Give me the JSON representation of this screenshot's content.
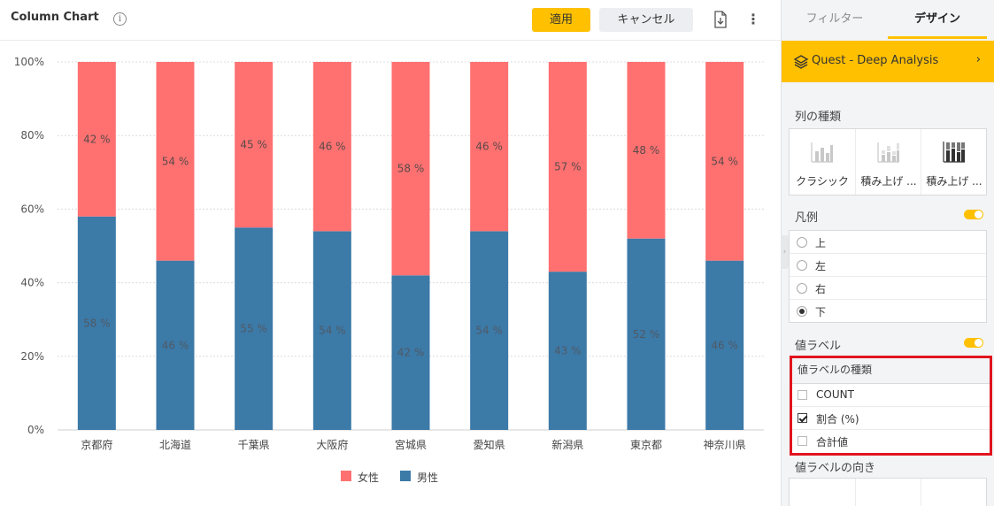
{
  "toolbar": {
    "chart_title": "Column Chart",
    "info_icon": "info-icon",
    "apply_label": "適用",
    "cancel_label": "キャンセル",
    "export_icon": "file-export-icon",
    "more_icon": "more-vertical-icon"
  },
  "colors": {
    "female": "#ff7171",
    "male": "#3c7aa8",
    "accent": "#ffc000",
    "highlight_border": "#e0141e"
  },
  "chart_data": {
    "type": "bar",
    "stacked": "100%",
    "categories": [
      "京都府",
      "北海道",
      "千葉県",
      "大阪府",
      "宮城県",
      "愛知県",
      "新潟県",
      "東京都",
      "神奈川県"
    ],
    "series": [
      {
        "name": "男性",
        "values": [
          58,
          46,
          55,
          54,
          42,
          54,
          43,
          52,
          46
        ]
      },
      {
        "name": "女性",
        "values": [
          42,
          54,
          45,
          46,
          58,
          46,
          57,
          48,
          54
        ]
      }
    ],
    "data_label_suffix": " %",
    "y_ticks": [
      "0%",
      "20%",
      "40%",
      "60%",
      "80%",
      "100%"
    ],
    "ylim": [
      0,
      100
    ],
    "grid": "horizontal-dotted",
    "legend_position": "bottom"
  },
  "side_panel": {
    "tabs": [
      {
        "label": "フィルター"
      },
      {
        "label": "デザイン"
      }
    ],
    "active_tab": "デザイン",
    "dataset": {
      "label": "Quest - Deep Analysis",
      "icon": "layers-icon",
      "chevron_icon": "chevron-right-icon"
    },
    "column_type": {
      "label": "列の種類",
      "options": [
        {
          "label": "クラシック"
        },
        {
          "label": "積み上げ ..."
        },
        {
          "label": "積み上げ ..."
        }
      ],
      "selected": 2
    },
    "legend": {
      "label": "凡例",
      "enabled": true,
      "options": [
        {
          "label": "上"
        },
        {
          "label": "左"
        },
        {
          "label": "右"
        },
        {
          "label": "下"
        }
      ],
      "selected": 3
    },
    "value_label": {
      "label": "値ラベル",
      "enabled": true,
      "type_label": "値ラベルの種類",
      "types": [
        {
          "label": "COUNT",
          "checked": false
        },
        {
          "label": "割合 (%)",
          "checked": true
        },
        {
          "label": "合計値",
          "checked": false
        }
      ],
      "direction_label": "値ラベルの向き"
    }
  }
}
